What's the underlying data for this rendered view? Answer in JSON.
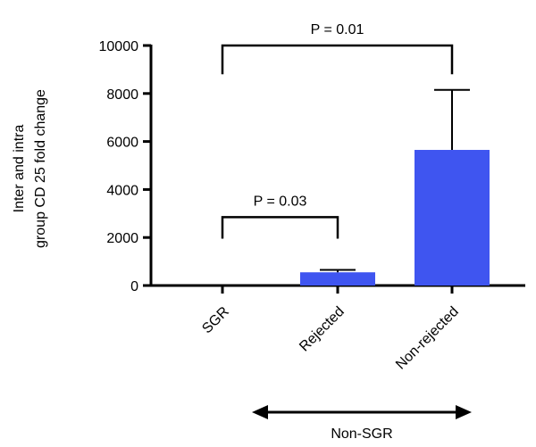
{
  "chart_data": {
    "type": "bar",
    "title": "",
    "xlabel": "",
    "ylabel_lines": [
      "Inter and intra",
      "group CD 25 fold change"
    ],
    "categories": [
      "SGR",
      "Rejected",
      "Non-rejected"
    ],
    "values": [
      0,
      550,
      5650
    ],
    "error_upper": [
      0,
      650,
      8150
    ],
    "ylim": [
      0,
      10000
    ],
    "yticks": [
      0,
      2000,
      4000,
      6000,
      8000,
      10000
    ],
    "ytick_labels": [
      "0",
      "2000",
      "4000",
      "6000",
      "8000",
      "10000"
    ],
    "bar_color": "#3f55f0",
    "grid": false,
    "legend": "none",
    "annotations": [
      {
        "text": "P = 0.03",
        "from": "SGR",
        "to": "Rejected",
        "bracket_y": 2850,
        "leg_bottom": 1950
      },
      {
        "text": "P = 0.01",
        "from": "SGR",
        "to": "Non-rejected",
        "bracket_y": 10000,
        "leg_bottom": 8800
      }
    ],
    "group_arrow": {
      "label": "Non-SGR",
      "from": "Rejected",
      "to": "Non-rejected"
    }
  }
}
